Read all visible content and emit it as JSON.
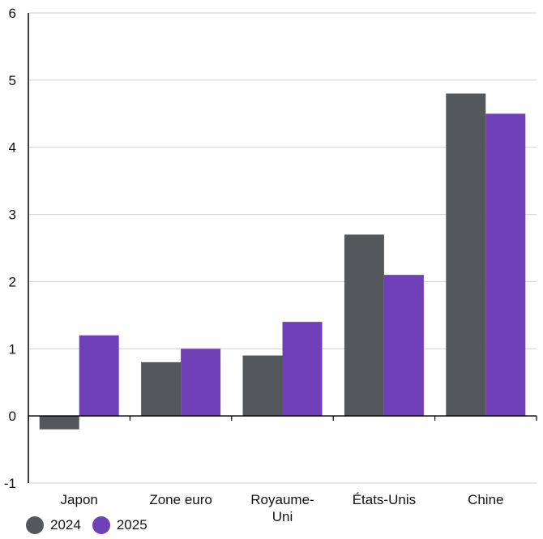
{
  "chart_data": {
    "type": "bar",
    "title": "",
    "xlabel": "",
    "ylabel": "",
    "ylim": [
      -1,
      6
    ],
    "yticks": [
      -1,
      0,
      1,
      2,
      3,
      4,
      5,
      6
    ],
    "grid": true,
    "legend_position": "bottom-left",
    "categories": [
      "Japon",
      "Zone euro",
      "Royaume-\nUni",
      "États-Unis",
      "Chine"
    ],
    "series": [
      {
        "name": "2024",
        "color": "#54585a",
        "values": [
          -0.2,
          0.8,
          0.9,
          2.7,
          4.8
        ]
      },
      {
        "name": "2025",
        "color": "#7040b8",
        "values": [
          1.2,
          1.0,
          1.4,
          2.1,
          4.5
        ]
      }
    ]
  }
}
